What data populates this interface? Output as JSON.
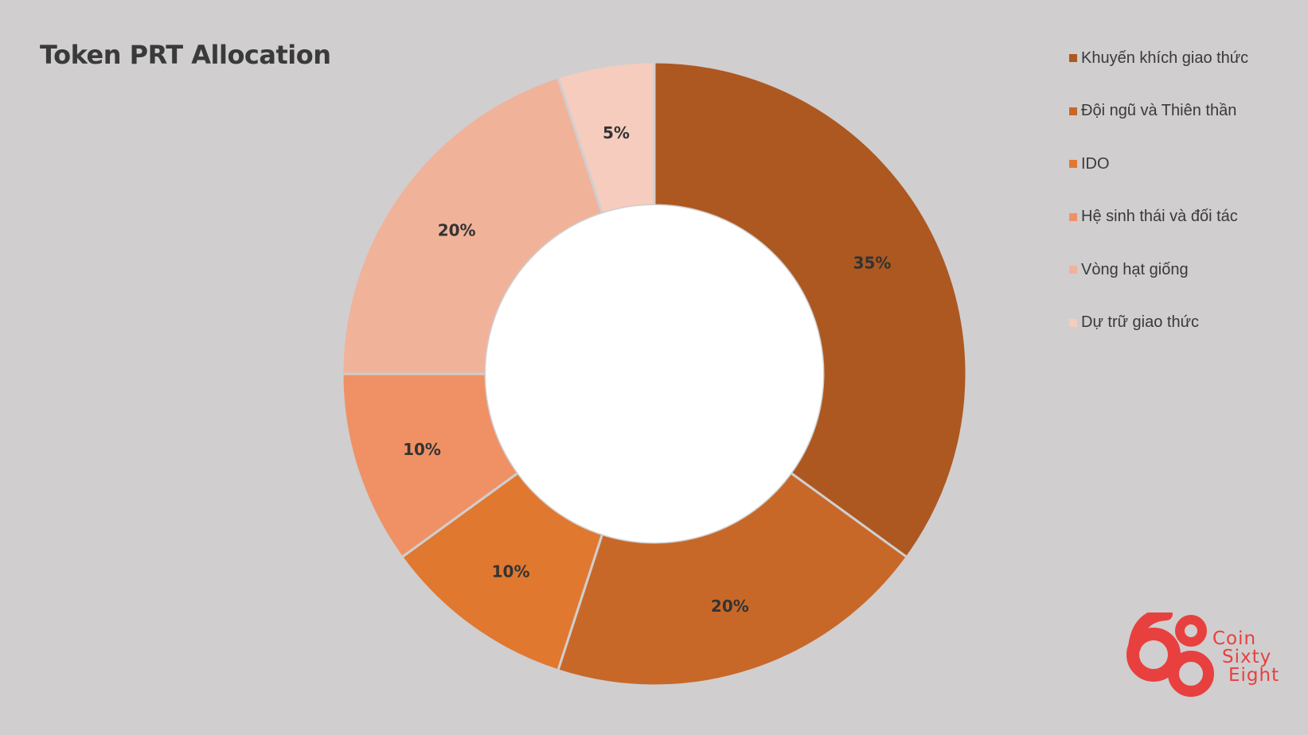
{
  "title": "Token PRT Allocation",
  "chart_data": {
    "type": "pie",
    "title": "Token PRT Allocation",
    "categories": [
      "Khuyến khích giao thức",
      "Đội ngũ và Thiên thần",
      "IDO",
      "Hệ sinh thái và đối tác",
      "Vòng hạt giống",
      "Dự trữ giao thức"
    ],
    "values": [
      35,
      20,
      10,
      10,
      20,
      5
    ],
    "value_labels": [
      "35%",
      "20%",
      "10%",
      "10%",
      "20%",
      "5%"
    ],
    "colors": [
      "#ad5820",
      "#c86828",
      "#e07830",
      "#ef9165",
      "#f1b29a",
      "#f5ccbe"
    ],
    "donut": true,
    "legend_position": "right"
  },
  "logo": {
    "line1": "Coin",
    "line2": "Sixty",
    "line3": "Eight",
    "color": "#e8403f"
  }
}
